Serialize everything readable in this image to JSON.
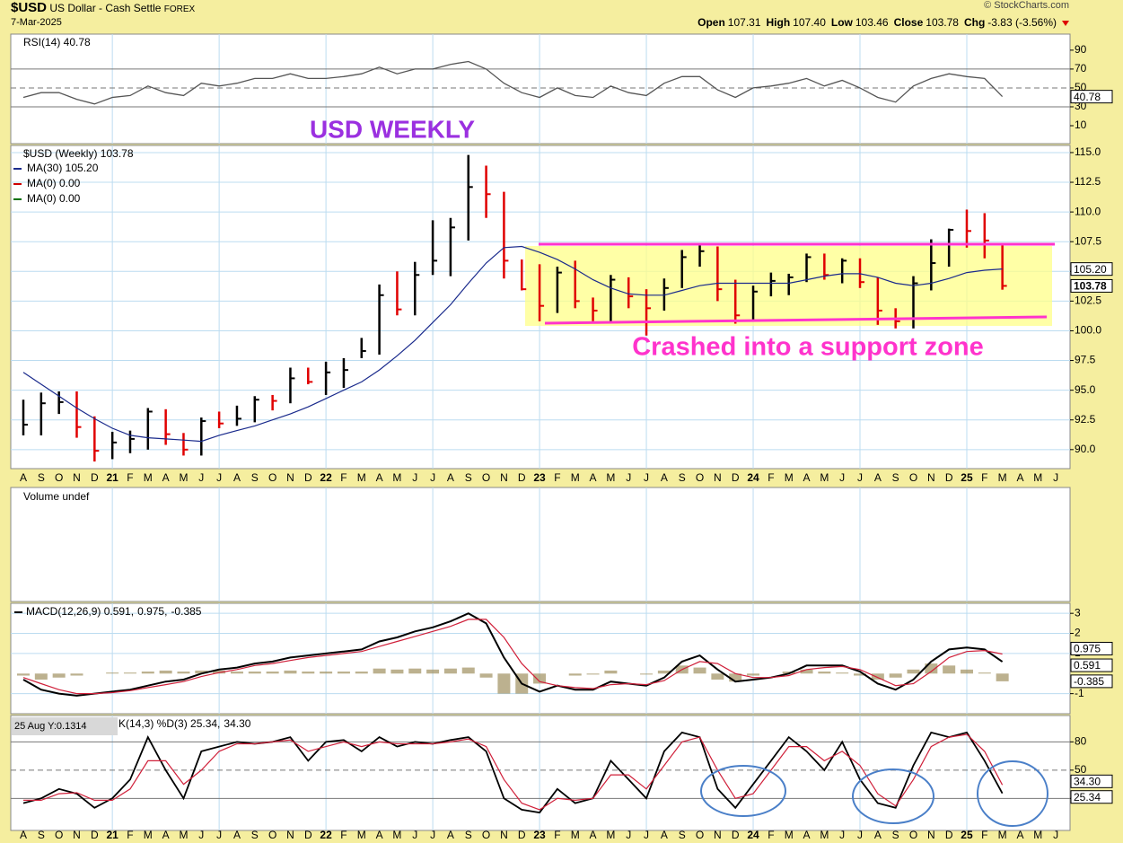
{
  "header": {
    "symbol": "$USD",
    "name": "US Dollar - Cash Settle",
    "exchange": "FOREX",
    "date": "7-Mar-2025",
    "source": "© StockCharts.com",
    "quote": [
      {
        "label": "Open",
        "value": "107.31"
      },
      {
        "label": "High",
        "value": "107.40"
      },
      {
        "label": "Low",
        "value": "103.46"
      },
      {
        "label": "Close",
        "value": "103.78"
      },
      {
        "label": "Chg",
        "value": "-3.83 (-3.56%)"
      }
    ]
  },
  "chart_data": [
    {
      "type": "line",
      "label": "RSI(14) 40.78",
      "ylim": [
        -9,
        107
      ],
      "yticks": [
        90,
        70,
        50,
        30,
        10
      ],
      "reference_lines": [
        {
          "value": 70
        },
        {
          "value": 50,
          "dashed": true
        },
        {
          "value": 30
        }
      ],
      "series": [
        {
          "name": "RSI(14)",
          "color": "#555555",
          "tag": "40.78",
          "values": [
            40,
            45,
            45,
            38,
            33,
            40,
            42,
            52,
            45,
            42,
            55,
            52,
            55,
            60,
            60,
            65,
            60,
            60,
            62,
            65,
            72,
            65,
            70,
            70,
            75,
            78,
            70,
            55,
            45,
            40,
            50,
            42,
            40,
            52,
            45,
            42,
            55,
            62,
            62,
            48,
            40,
            50,
            52,
            55,
            60,
            52,
            58,
            50,
            40,
            35,
            52,
            60,
            65,
            62,
            60,
            40.78,
            null,
            null,
            null
          ]
        }
      ]
    },
    {
      "type": "ohlc",
      "title": "USD WEEKLY",
      "annotation": "Crashed into a  support zone",
      "label": "$USD (Weekly) 103.78",
      "up_color": "#000000",
      "down_color": "#e00000",
      "close_tag": "103.78",
      "grid": true,
      "ylim": [
        88.4,
        115.6
      ],
      "yticks": [
        {
          "value": 115,
          "label": "115.0"
        },
        {
          "value": 112.5,
          "label": "112.5"
        },
        {
          "value": 110,
          "label": "110.0"
        },
        {
          "value": 107.5,
          "label": "107.5"
        },
        {
          "value": 105,
          "label": "105.0"
        },
        {
          "value": 102.5,
          "label": "102.5"
        },
        {
          "value": 100,
          "label": "100.0"
        },
        {
          "value": 97.5,
          "label": "97.5"
        },
        {
          "value": 95,
          "label": "95.0"
        },
        {
          "value": 92.5,
          "label": "92.5"
        },
        {
          "value": 90,
          "label": "90.0"
        }
      ],
      "categories": [
        "A",
        "S",
        "O",
        "N",
        "D",
        "21",
        "F",
        "M",
        "A",
        "M",
        "J",
        "J",
        "A",
        "S",
        "O",
        "N",
        "D",
        "22",
        "F",
        "M",
        "A",
        "M",
        "J",
        "J",
        "A",
        "S",
        "O",
        "N",
        "D",
        "23",
        "F",
        "M",
        "A",
        "M",
        "J",
        "J",
        "A",
        "S",
        "O",
        "N",
        "D",
        "24",
        "F",
        "M",
        "A",
        "M",
        "J",
        "J",
        "A",
        "S",
        "O",
        "N",
        "D",
        "25",
        "F",
        "M",
        "A",
        "M",
        "J"
      ],
      "high": [
        94.2,
        94.8,
        94.9,
        94.9,
        92.8,
        91.5,
        91.6,
        93.5,
        93.4,
        91.4,
        92.7,
        93.2,
        93.7,
        94.5,
        94.6,
        96.9,
        96.9,
        97.4,
        97.7,
        99.4,
        103.9,
        105.0,
        105.8,
        109.3,
        109.5,
        114.8,
        113.9,
        111.7,
        106.0,
        105.6,
        105.4,
        105.9,
        102.8,
        104.7,
        104.5,
        103.5,
        104.4,
        106.8,
        107.3,
        107.1,
        104.3,
        103.8,
        104.9,
        104.8,
        106.5,
        106.5,
        106.1,
        106.1,
        104.5,
        101.9,
        104.6,
        107.7,
        108.6,
        110.2,
        109.9,
        107.4,
        null,
        null,
        null
      ],
      "low": [
        91.2,
        91.2,
        93.0,
        91.0,
        89.0,
        89.2,
        89.7,
        90.0,
        90.4,
        89.5,
        89.5,
        91.8,
        92.0,
        92.3,
        93.3,
        93.9,
        95.5,
        94.6,
        95.2,
        97.7,
        98.0,
        101.3,
        101.3,
        104.7,
        104.6,
        107.6,
        109.5,
        104.4,
        103.4,
        100.8,
        101.5,
        101.9,
        100.8,
        100.8,
        101.9,
        99.6,
        101.7,
        103.6,
        105.4,
        102.5,
        100.6,
        100.8,
        102.9,
        103.0,
        104.1,
        104.3,
        104.0,
        103.6,
        100.5,
        100.2,
        100.2,
        103.4,
        105.4,
        107.0,
        106.1,
        103.46,
        null,
        null,
        null
      ],
      "close": [
        92.1,
        93.9,
        94.0,
        91.9,
        89.9,
        90.6,
        90.9,
        93.2,
        91.3,
        90.0,
        92.4,
        92.2,
        92.6,
        94.2,
        94.1,
        96.0,
        95.7,
        96.5,
        96.7,
        98.3,
        103.0,
        101.8,
        104.7,
        105.9,
        108.7,
        112.1,
        111.5,
        105.9,
        103.5,
        102.1,
        104.9,
        102.5,
        101.7,
        104.3,
        102.9,
        101.9,
        103.6,
        106.2,
        106.7,
        103.5,
        101.3,
        103.3,
        104.2,
        104.5,
        106.2,
        104.7,
        105.9,
        104.1,
        101.7,
        100.8,
        104.0,
        105.7,
        108.5,
        108.4,
        107.6,
        103.78,
        null,
        null,
        null
      ],
      "series": [
        {
          "name": "MA(30) 105.20",
          "color": "#1a2a8c",
          "tag": "105.20",
          "values": [
            96.5,
            95.5,
            94.5,
            93.5,
            92.6,
            91.8,
            91.2,
            91.0,
            90.9,
            90.8,
            90.7,
            91.2,
            91.6,
            92.0,
            92.5,
            93.0,
            93.6,
            94.3,
            95.0,
            95.7,
            96.7,
            97.9,
            99.2,
            100.7,
            102.2,
            104.0,
            105.7,
            107.0,
            107.1,
            106.6,
            106.0,
            105.2,
            104.3,
            103.6,
            103.1,
            103.0,
            103.0,
            103.4,
            103.8,
            104.0,
            104.0,
            104.0,
            104.0,
            104.0,
            104.3,
            104.6,
            104.8,
            104.8,
            104.5,
            104.0,
            103.8,
            104.0,
            104.4,
            104.9,
            105.1,
            105.2,
            null,
            null,
            null
          ]
        },
        {
          "name": "MA(0) 0.00",
          "color": "#d00000"
        },
        {
          "name": "MA(0) 0.00",
          "color": "#007000"
        }
      ]
    },
    {
      "type": "bar",
      "label": "Volume undef"
    },
    {
      "type": "macd",
      "ylim": [
        -2,
        3.5
      ],
      "yticks": [
        3,
        2,
        1,
        -1
      ],
      "grid": true,
      "series": [
        {
          "name": "MACD(12,26,9) 0.591,",
          "color": "#000000",
          "tag": "0.591",
          "values": [
            -0.3,
            -0.8,
            -1.0,
            -1.1,
            -1.0,
            -0.9,
            -0.8,
            -0.6,
            -0.4,
            -0.3,
            0.0,
            0.2,
            0.3,
            0.5,
            0.6,
            0.8,
            0.9,
            1.0,
            1.1,
            1.2,
            1.6,
            1.8,
            2.1,
            2.3,
            2.6,
            3.0,
            2.5,
            0.8,
            -0.5,
            -0.9,
            -0.6,
            -0.8,
            -0.8,
            -0.4,
            -0.5,
            -0.6,
            -0.2,
            0.6,
            0.9,
            0.2,
            -0.4,
            -0.3,
            -0.2,
            0.0,
            0.4,
            0.4,
            0.4,
            0.1,
            -0.5,
            -0.8,
            -0.3,
            0.6,
            1.2,
            1.3,
            1.2,
            0.591,
            null,
            null,
            null
          ]
        },
        {
          "name": "0.975,",
          "color": "#d0203a",
          "tag": "0.975",
          "values": [
            -0.2,
            -0.5,
            -0.8,
            -1.0,
            -1.0,
            -0.95,
            -0.85,
            -0.7,
            -0.55,
            -0.4,
            -0.15,
            0.05,
            0.2,
            0.4,
            0.5,
            0.65,
            0.8,
            0.9,
            1.0,
            1.1,
            1.35,
            1.6,
            1.85,
            2.1,
            2.35,
            2.7,
            2.7,
            1.8,
            0.5,
            -0.4,
            -0.6,
            -0.7,
            -0.75,
            -0.55,
            -0.5,
            -0.55,
            -0.35,
            0.2,
            0.6,
            0.5,
            0.0,
            -0.2,
            -0.2,
            -0.1,
            0.2,
            0.3,
            0.35,
            0.2,
            -0.2,
            -0.6,
            -0.5,
            0.1,
            0.8,
            1.1,
            1.15,
            0.975,
            null,
            null,
            null
          ]
        },
        {
          "name": "-0.385",
          "color": "#a09060",
          "tag": "-0.385",
          "values": [
            -0.1,
            -0.3,
            -0.2,
            -0.1,
            0,
            0.05,
            0.05,
            0.1,
            0.15,
            0.1,
            0.15,
            0.15,
            0.1,
            0.1,
            0.1,
            0.15,
            0.1,
            0.1,
            0.1,
            0.1,
            0.25,
            0.2,
            0.25,
            0.2,
            0.25,
            0.3,
            -0.2,
            -1.0,
            -1.0,
            -0.5,
            0,
            -0.1,
            -0.05,
            0.15,
            0,
            -0.05,
            0.15,
            0.4,
            0.3,
            -0.3,
            -0.4,
            -0.1,
            0,
            0.1,
            0.2,
            0.1,
            0.05,
            -0.1,
            -0.3,
            -0.2,
            0.2,
            0.5,
            0.4,
            0.2,
            0.05,
            -0.385,
            null,
            null,
            null
          ]
        }
      ]
    },
    {
      "type": "stochastic",
      "tooltip": "25 Aug Y:0.1314",
      "ylim": [
        -14,
        108
      ],
      "yticks": [
        80,
        50,
        20
      ],
      "reference_lines": [
        {
          "value": 80
        },
        {
          "value": 50,
          "dashed": true
        },
        {
          "value": 20
        }
      ],
      "series": [
        {
          "name": "K(14,3) %D(3) 25.34,",
          "color": "#000000",
          "tag": "25.34",
          "values": [
            15,
            20,
            30,
            25,
            10,
            20,
            40,
            85,
            50,
            20,
            70,
            75,
            80,
            78,
            80,
            85,
            60,
            80,
            82,
            70,
            85,
            75,
            80,
            78,
            82,
            85,
            70,
            20,
            8,
            5,
            30,
            15,
            20,
            60,
            40,
            20,
            70,
            90,
            85,
            30,
            10,
            35,
            60,
            85,
            70,
            50,
            80,
            40,
            15,
            10,
            55,
            90,
            85,
            90,
            60,
            25.34,
            null,
            null,
            null
          ]
        },
        {
          "name": "34.30",
          "color": "#d0203a",
          "tag": "34.30",
          "values": [
            18,
            18,
            25,
            26,
            18,
            18,
            30,
            60,
            60,
            35,
            50,
            70,
            78,
            78,
            80,
            82,
            70,
            75,
            80,
            75,
            80,
            78,
            78,
            78,
            80,
            83,
            75,
            40,
            15,
            8,
            20,
            18,
            20,
            45,
            45,
            30,
            55,
            80,
            85,
            50,
            20,
            25,
            50,
            75,
            75,
            60,
            70,
            55,
            25,
            12,
            40,
            75,
            85,
            88,
            70,
            34.3,
            null,
            null,
            null
          ]
        }
      ]
    }
  ]
}
